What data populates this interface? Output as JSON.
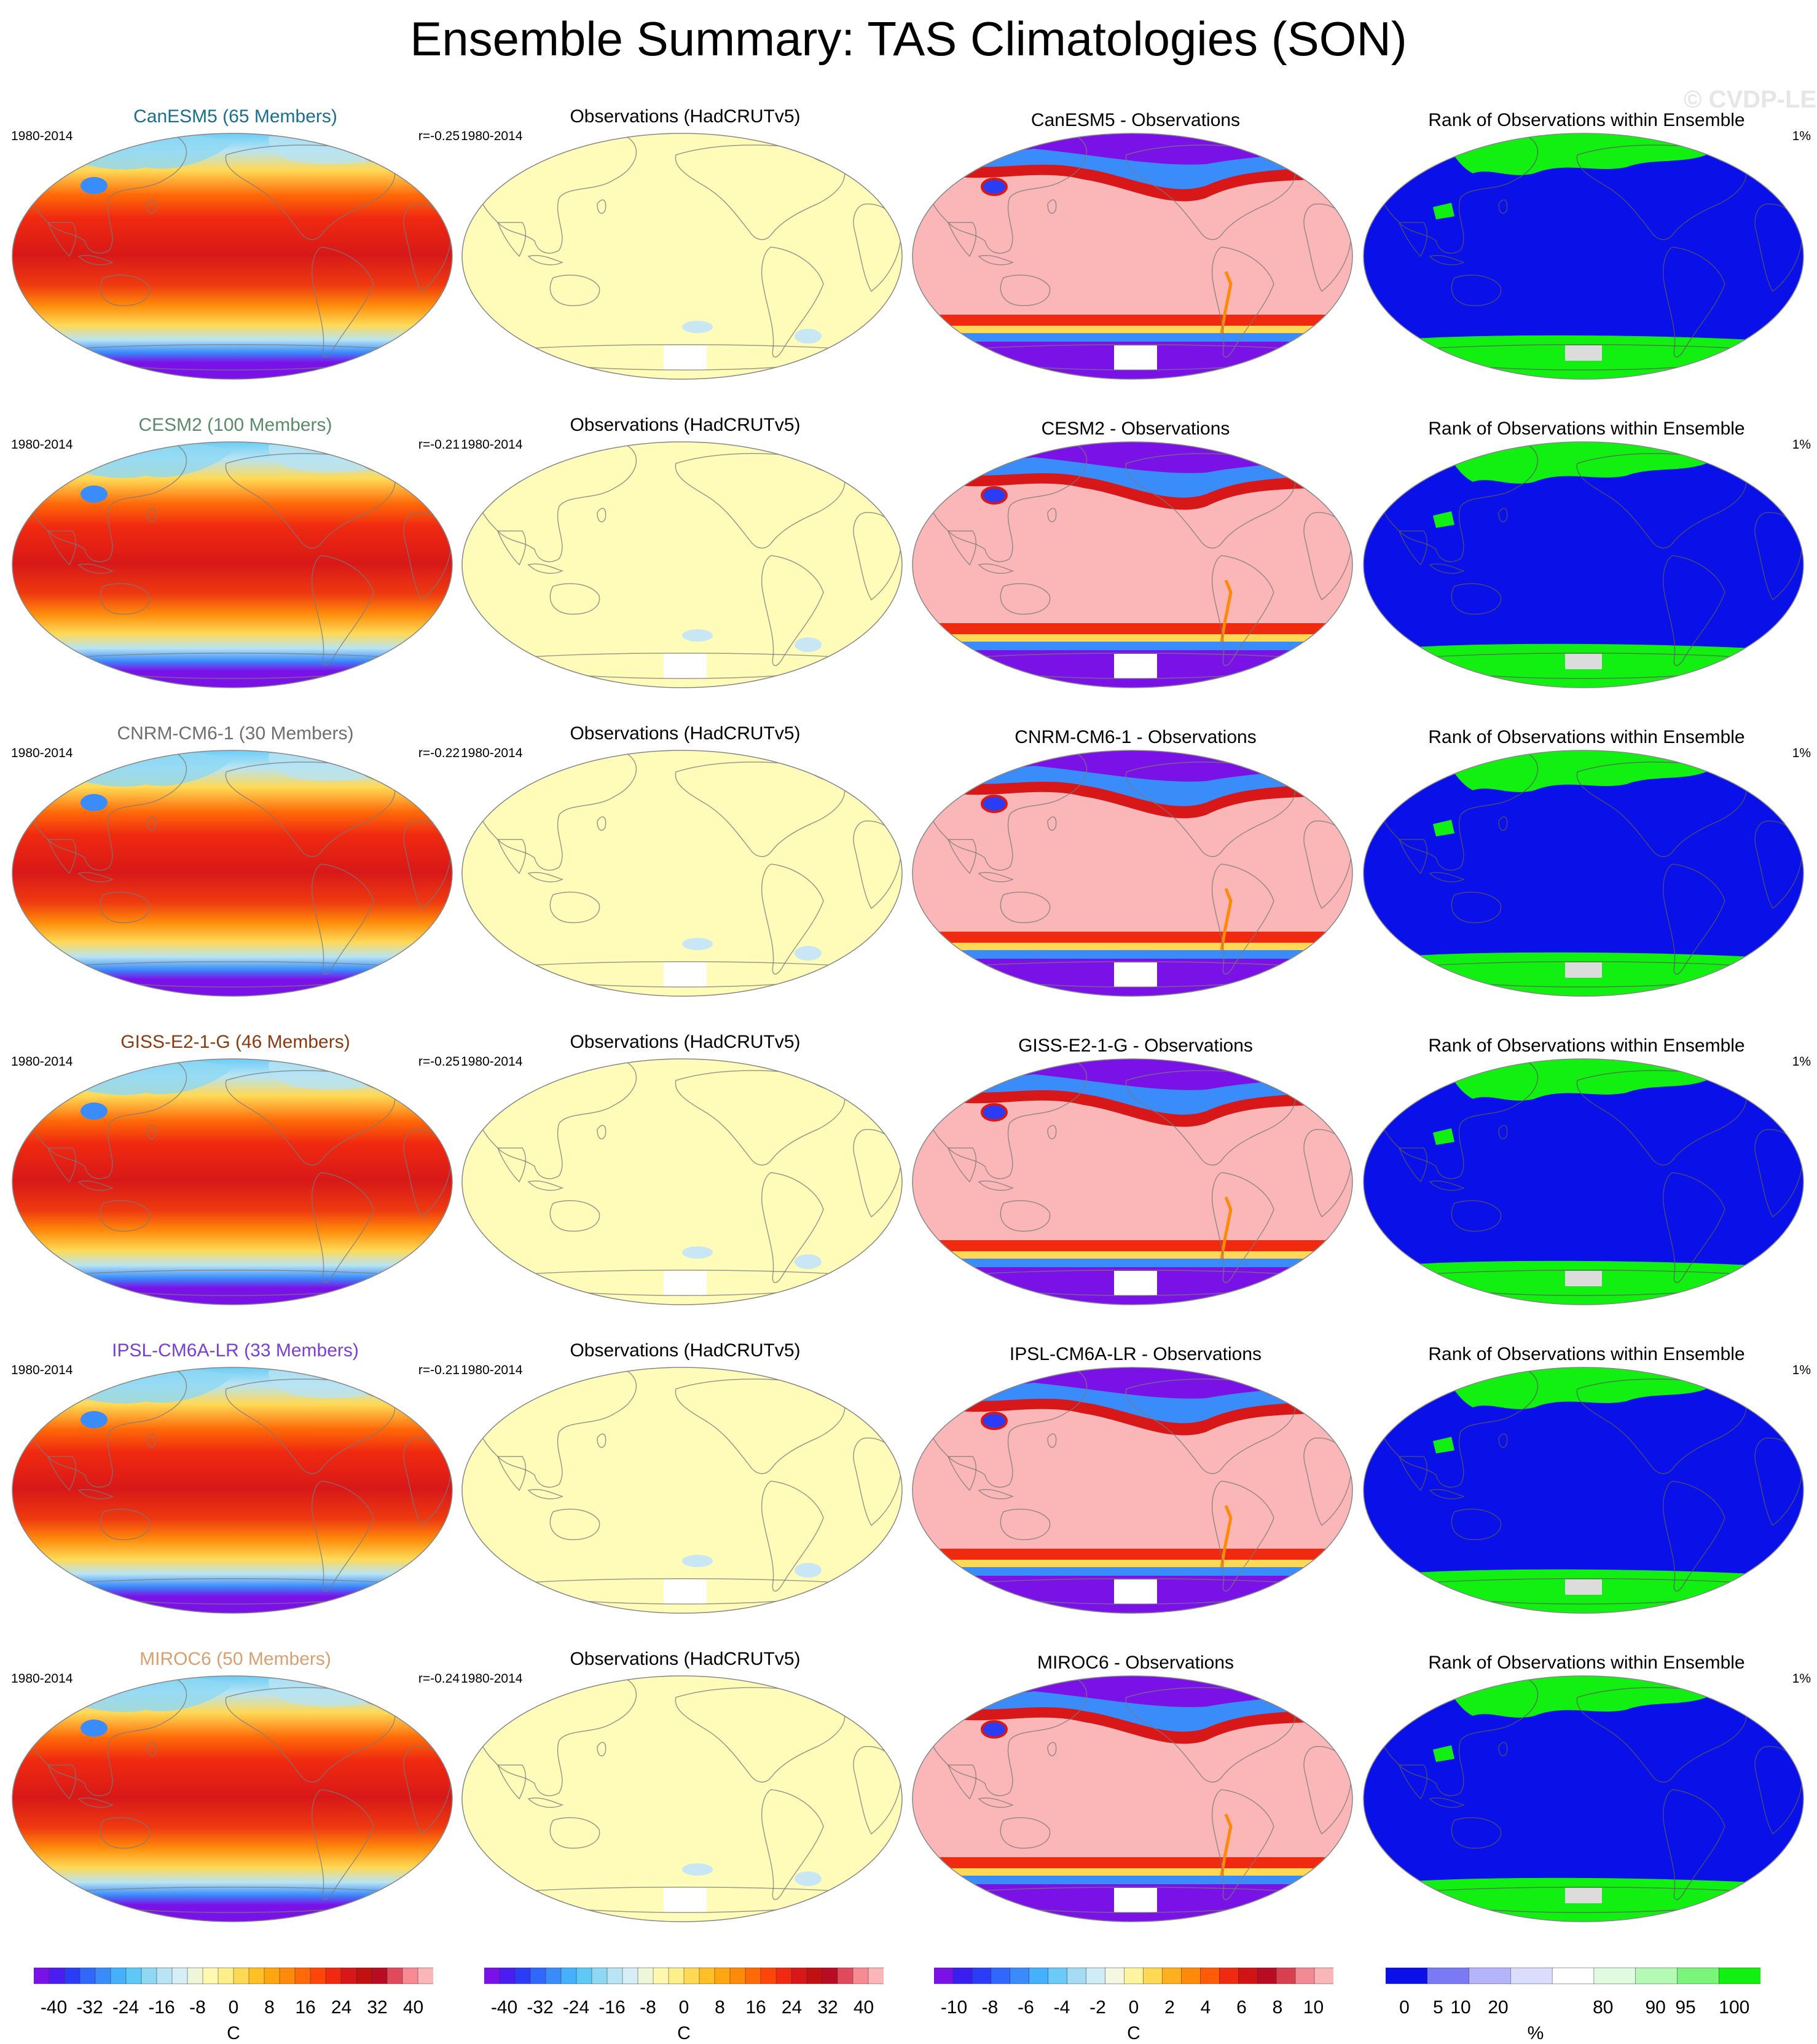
{
  "title": "Ensemble Summary: TAS Climatologies (SON)",
  "watermark": "© CVDP-LE",
  "rows": [
    {
      "model_title": "CanESM5 (65 Members)",
      "title_color": "#1a6e8e",
      "period": "1980-2014",
      "corr": "r=-0.25",
      "obs_title": "Observations (HadCRUTv5)",
      "obs_period": "1980-2014",
      "diff_title": "CanESM5 - Observations",
      "rank_title": "Rank of Observations within Ensemble",
      "rank_pct": "1%"
    },
    {
      "model_title": "CESM2 (100 Members)",
      "title_color": "#5a8a6a",
      "period": "1980-2014",
      "corr": "r=-0.21",
      "obs_title": "Observations (HadCRUTv5)",
      "obs_period": "1980-2014",
      "diff_title": "CESM2 - Observations",
      "rank_title": "Rank of Observations within Ensemble",
      "rank_pct": "1%"
    },
    {
      "model_title": "CNRM-CM6-1 (30 Members)",
      "title_color": "#6e6e6e",
      "period": "1980-2014",
      "corr": "r=-0.22",
      "obs_title": "Observations (HadCRUTv5)",
      "obs_period": "1980-2014",
      "diff_title": "CNRM-CM6-1 - Observations",
      "rank_title": "Rank of Observations within Ensemble",
      "rank_pct": "1%"
    },
    {
      "model_title": "GISS-E2-1-G (46 Members)",
      "title_color": "#8a3a10",
      "period": "1980-2014",
      "corr": "r=-0.25",
      "obs_title": "Observations (HadCRUTv5)",
      "obs_period": "1980-2014",
      "diff_title": "GISS-E2-1-G - Observations",
      "rank_title": "Rank of Observations within Ensemble",
      "rank_pct": "1%"
    },
    {
      "model_title": "IPSL-CM6A-LR (33 Members)",
      "title_color": "#7b3fd6",
      "period": "1980-2014",
      "corr": "r=-0.21",
      "obs_title": "Observations (HadCRUTv5)",
      "obs_period": "1980-2014",
      "diff_title": "IPSL-CM6A-LR - Observations",
      "rank_title": "Rank of Observations within Ensemble",
      "rank_pct": "1%"
    },
    {
      "model_title": "MIROC6 (50 Members)",
      "title_color": "#d8a070",
      "period": "1980-2014",
      "corr": "r=-0.24",
      "obs_title": "Observations (HadCRUTv5)",
      "obs_period": "1980-2014",
      "diff_title": "MIROC6 - Observations",
      "rank_title": "Rank of Observations within Ensemble",
      "rank_pct": "1%"
    }
  ],
  "colorbars": [
    {
      "unit": "C",
      "ticks": [
        "-40",
        "-32",
        "-24",
        "-16",
        "-8",
        "0",
        "8",
        "16",
        "24",
        "32",
        "40"
      ],
      "colors": [
        "#7a12e8",
        "#4a1ef0",
        "#2a3cf5",
        "#2f68fa",
        "#3a8cfa",
        "#45b0fb",
        "#5ec8f7",
        "#8fd8f4",
        "#b8e4f3",
        "#d6eef5",
        "#eef7d8",
        "#fff9b0",
        "#ffef8a",
        "#ffd955",
        "#ffc025",
        "#ffa610",
        "#ff8a0a",
        "#ff6a08",
        "#ff4608",
        "#f02a10",
        "#d81818",
        "#c01010",
        "#b80c22",
        "#e04a5a",
        "#f88a94",
        "#fbb6b8"
      ]
    },
    {
      "unit": "C",
      "ticks": [
        "-40",
        "-32",
        "-24",
        "-16",
        "-8",
        "0",
        "8",
        "16",
        "24",
        "32",
        "40"
      ],
      "colors": [
        "#7a12e8",
        "#4a1ef0",
        "#2a3cf5",
        "#2f68fa",
        "#3a8cfa",
        "#45b0fb",
        "#5ec8f7",
        "#8fd8f4",
        "#b8e4f3",
        "#d6eef5",
        "#eef7d8",
        "#fff9b0",
        "#ffef8a",
        "#ffd955",
        "#ffc025",
        "#ffa610",
        "#ff8a0a",
        "#ff6a08",
        "#ff4608",
        "#f02a10",
        "#d81818",
        "#c01010",
        "#b80c22",
        "#e04a5a",
        "#f88a94",
        "#fbb6b8"
      ]
    },
    {
      "unit": "C",
      "ticks": [
        "-10",
        "-8",
        "-6",
        "-4",
        "-2",
        "0",
        "2",
        "4",
        "6",
        "8",
        "10"
      ],
      "colors": [
        "#7a12e8",
        "#3a1ef0",
        "#2a3cf5",
        "#2f68fa",
        "#3a8cfa",
        "#45b0fb",
        "#6ccaf6",
        "#a6dcf3",
        "#d0ecf6",
        "#f4f8e0",
        "#fff4a0",
        "#ffd855",
        "#ffb01e",
        "#ff8a0a",
        "#ff5a08",
        "#f02a10",
        "#d01414",
        "#b80c22",
        "#d84050",
        "#f28a94",
        "#fbb6b8"
      ]
    },
    {
      "unit": "%",
      "ticks": [
        "0",
        "5",
        "10",
        "20",
        "80",
        "90",
        "95",
        "100"
      ],
      "colors": [
        "#0a10e8",
        "#7a7af5",
        "#b4b4fa",
        "#dcdcfc",
        "#ffffff",
        "#e0fce0",
        "#b4fab4",
        "#7af57a",
        "#12f012"
      ]
    }
  ]
}
